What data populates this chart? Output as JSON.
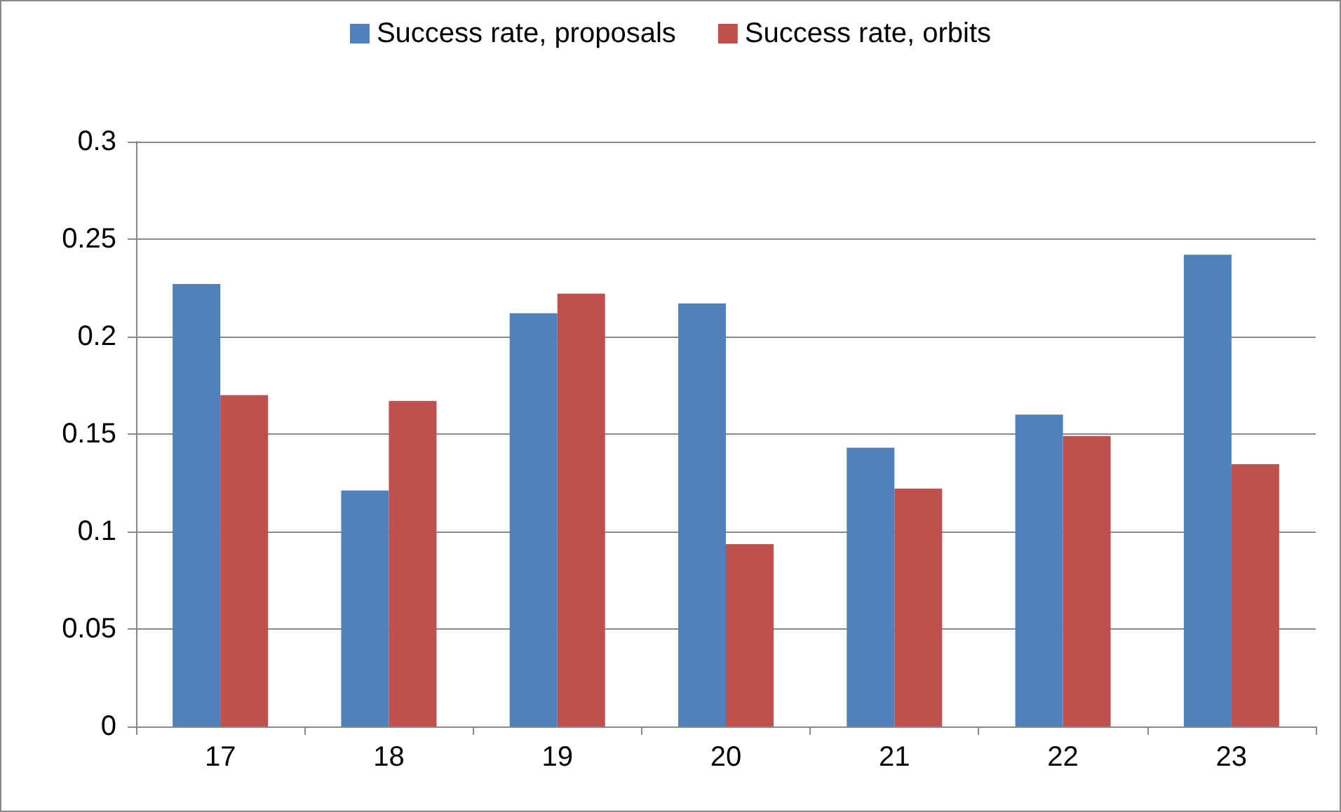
{
  "chart_data": {
    "type": "bar",
    "categories": [
      "17",
      "18",
      "19",
      "20",
      "21",
      "22",
      "23"
    ],
    "series": [
      {
        "name": "Success rate, proposals",
        "color": "#4f81bd",
        "values": [
          0.227,
          0.121,
          0.212,
          0.217,
          0.143,
          0.16,
          0.242
        ]
      },
      {
        "name": "Success rate, orbits",
        "color": "#c0504d",
        "values": [
          0.17,
          0.167,
          0.222,
          0.0935,
          0.122,
          0.149,
          0.1345
        ]
      }
    ],
    "ylim": [
      0,
      0.3
    ],
    "yticks": [
      0,
      0.05,
      0.1,
      0.15,
      0.2,
      0.25,
      0.3
    ],
    "grid": "y",
    "legend": "top"
  }
}
